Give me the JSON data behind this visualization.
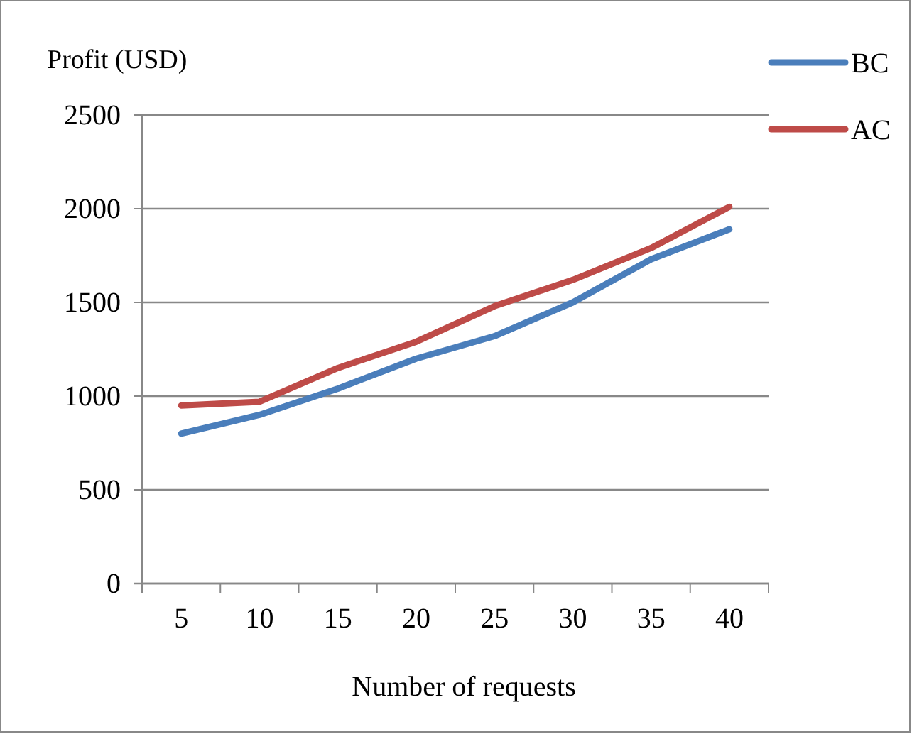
{
  "chart_data": {
    "type": "line",
    "ylabel": "Profit (USD)",
    "xlabel": "Number of requests",
    "categories": [
      "5",
      "10",
      "15",
      "20",
      "25",
      "30",
      "35",
      "40"
    ],
    "series": [
      {
        "name": "BC",
        "color": "#4a7ebb",
        "values": [
          800,
          900,
          1040,
          1200,
          1320,
          1500,
          1730,
          1890
        ]
      },
      {
        "name": "AC",
        "color": "#be4b48",
        "values": [
          950,
          970,
          1150,
          1290,
          1480,
          1620,
          1790,
          2010
        ]
      }
    ],
    "ylim": [
      0,
      2500
    ],
    "yticks": [
      0,
      500,
      1000,
      1500,
      2000,
      2500
    ],
    "grid": "y",
    "legend": "top right",
    "marker": "none",
    "line_style": "solid"
  }
}
